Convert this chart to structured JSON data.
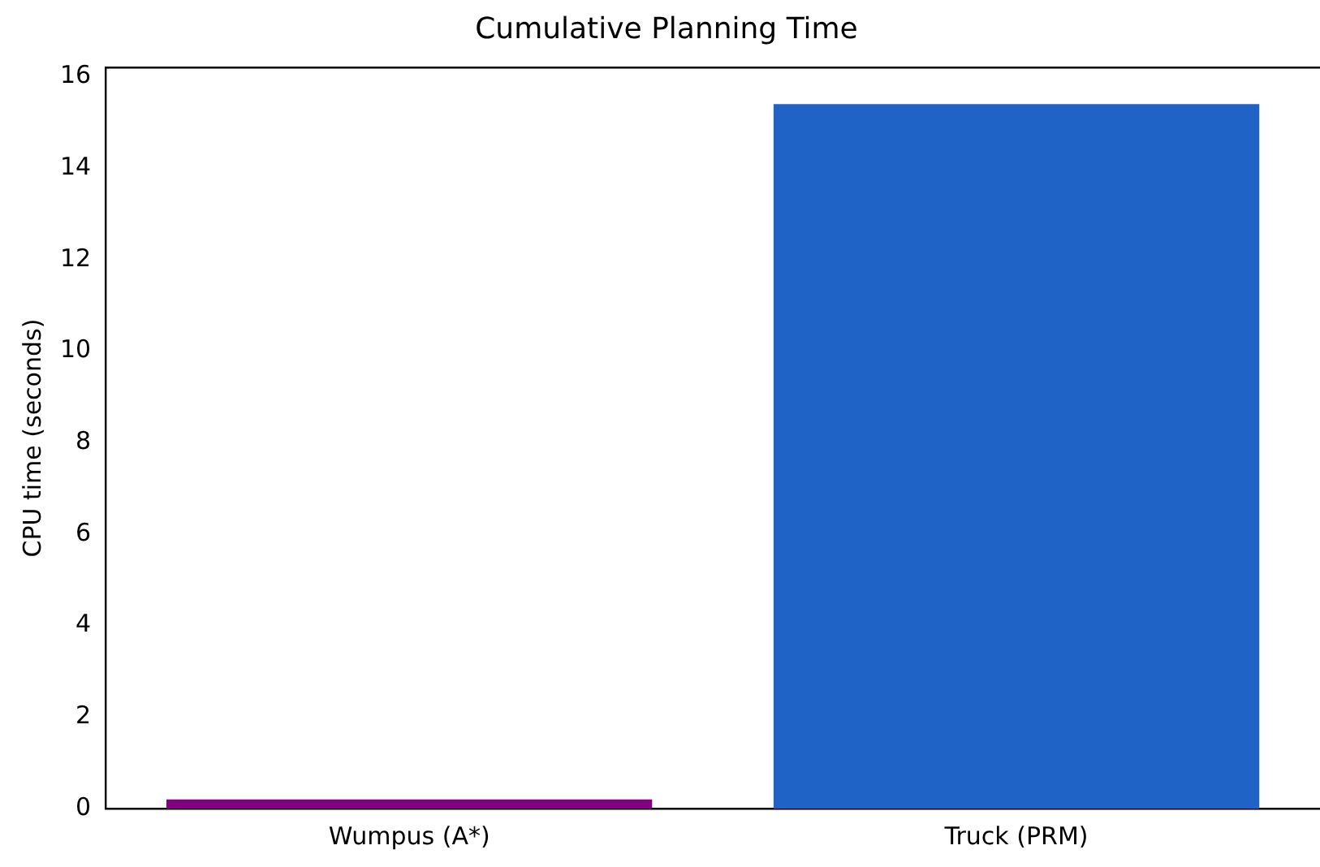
{
  "chart_data": {
    "type": "bar",
    "title": "Cumulative Planning Time",
    "ylabel": "CPU time (seconds)",
    "categories": [
      "Wumpus (A*)",
      "Truck (PRM)"
    ],
    "values": [
      0.2,
      15.4
    ],
    "colors": [
      "#800080",
      "#1f63c6"
    ],
    "ylim": [
      0,
      16.2
    ],
    "yticks": [
      0,
      2,
      4,
      6,
      8,
      10,
      12,
      14,
      16
    ],
    "grid": false,
    "legend": false
  }
}
